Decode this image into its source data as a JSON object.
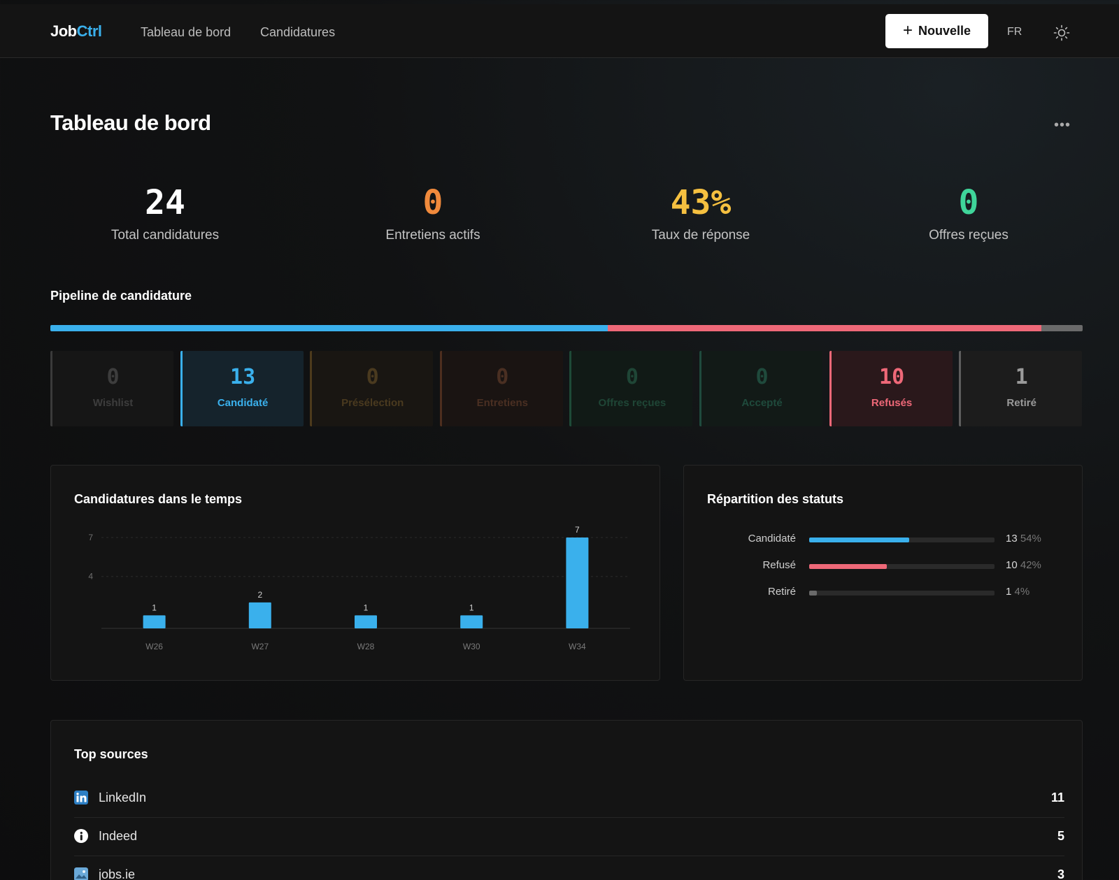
{
  "app": {
    "logo_part1": "Job",
    "logo_part2": "Ctrl"
  },
  "nav": {
    "dashboard": "Tableau de bord",
    "applications": "Candidatures"
  },
  "header": {
    "new_button": "Nouvelle",
    "language": "FR",
    "theme_icon": "sun-icon"
  },
  "page": {
    "title": "Tableau de bord",
    "more_icon": "more-horizontal-icon"
  },
  "kpis": [
    {
      "value": "24",
      "label": "Total candidatures",
      "color": "#ffffff"
    },
    {
      "value": "0",
      "label": "Entretiens actifs",
      "color": "#f08a3c"
    },
    {
      "value": "43%",
      "label": "Taux de réponse",
      "color": "#f5c040"
    },
    {
      "value": "0",
      "label": "Offres reçues",
      "color": "#3fd59a"
    }
  ],
  "pipeline": {
    "title": "Pipeline de candidature",
    "bar_segments": [
      {
        "status": "Candidaté",
        "fraction": 0.54,
        "color": "#3ab0ec"
      },
      {
        "status": "Refusés",
        "fraction": 0.42,
        "color": "#ee6878"
      },
      {
        "status": "Retiré",
        "fraction": 0.04,
        "color": "#6a6a6a"
      }
    ],
    "stages": [
      {
        "count": "0",
        "label": "Wishlist",
        "color": "#3a3a3a",
        "text_color": "#3d3d3d",
        "bg": "#161616"
      },
      {
        "count": "13",
        "label": "Candidaté",
        "color": "#3ab0ec",
        "text_color": "#3ab0ec",
        "bg": "#15232c"
      },
      {
        "count": "0",
        "label": "Présélection",
        "color": "#4d3a1c",
        "text_color": "#4a3a1f",
        "bg": "#191612"
      },
      {
        "count": "0",
        "label": "Entretiens",
        "color": "#4d2e1e",
        "text_color": "#4a2f22",
        "bg": "#1a1412"
      },
      {
        "count": "0",
        "label": "Offres reçues",
        "color": "#1e4a37",
        "text_color": "#1f4636",
        "bg": "#111a16"
      },
      {
        "count": "0",
        "label": "Accepté",
        "color": "#1f4a3d",
        "text_color": "#1f4a3c",
        "bg": "#121a17"
      },
      {
        "count": "10",
        "label": "Refusés",
        "color": "#ee6878",
        "text_color": "#ee6878",
        "bg": "#2a181b"
      },
      {
        "count": "1",
        "label": "Retiré",
        "color": "#5e5e5e",
        "text_color": "#9a9a9a",
        "bg": "#1c1c1c"
      }
    ]
  },
  "timeline": {
    "title": "Candidatures dans le temps"
  },
  "chart_data": {
    "type": "bar",
    "title": "Candidatures dans le temps",
    "categories": [
      "W26",
      "W27",
      "W28",
      "W30",
      "W34"
    ],
    "values": [
      1,
      2,
      1,
      1,
      7
    ],
    "yticks": [
      "7",
      "4"
    ],
    "ylim": [
      0,
      7
    ],
    "grid": true,
    "color": "#3ab0ec"
  },
  "distribution": {
    "title": "Répartition des statuts",
    "rows": [
      {
        "label": "Candidaté",
        "count": "13",
        "percent": "54%",
        "fraction": 0.54,
        "color": "#3ab0ec"
      },
      {
        "label": "Refusé",
        "count": "10",
        "percent": "42%",
        "fraction": 0.42,
        "color": "#ee6878"
      },
      {
        "label": "Retiré",
        "count": "1",
        "percent": "4%",
        "fraction": 0.04,
        "color": "#6a6a6a"
      }
    ]
  },
  "sources": {
    "title": "Top sources",
    "items": [
      {
        "name": "LinkedIn",
        "count": "11",
        "icon": "linkedin-icon"
      },
      {
        "name": "Indeed",
        "count": "5",
        "icon": "indeed-icon"
      },
      {
        "name": "jobs.ie",
        "count": "3",
        "icon": "image-icon"
      }
    ]
  }
}
